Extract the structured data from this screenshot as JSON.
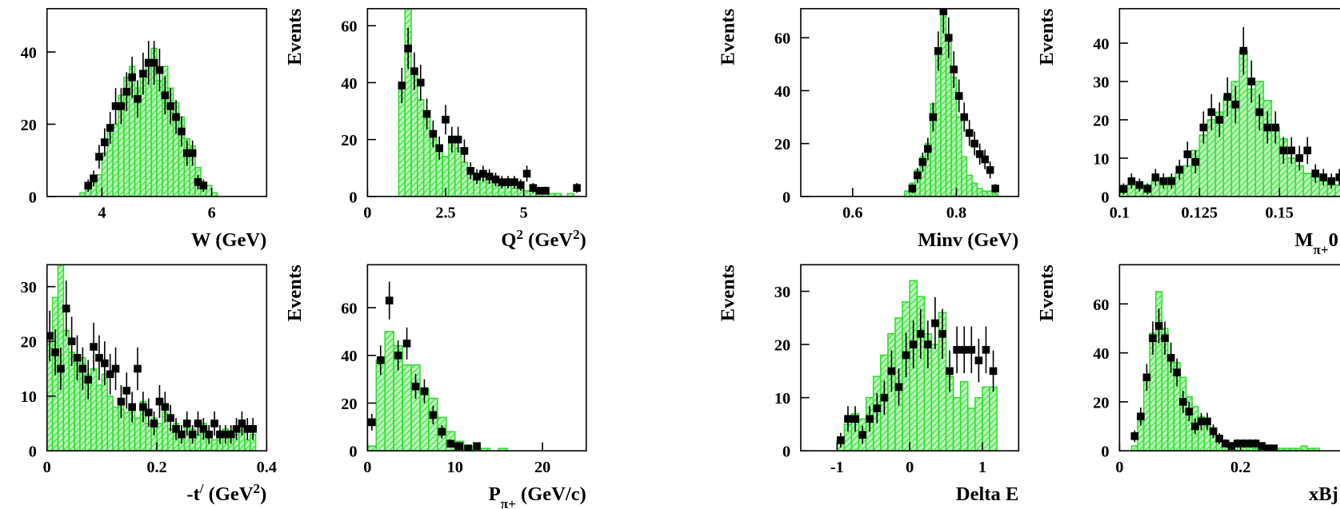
{
  "chart_data": [
    {
      "type": "histogram",
      "xlabel": [
        {
          "text": "W (GeV)"
        }
      ],
      "xlim": [
        3,
        7
      ],
      "xticks": [
        4,
        6
      ],
      "ylim": [
        0,
        52
      ],
      "yticks": [
        0,
        20,
        40
      ],
      "color": "#33dd33",
      "bins": [
        3.6,
        3.7,
        3.8,
        3.9,
        4.0,
        4.1,
        4.2,
        4.3,
        4.4,
        4.5,
        4.6,
        4.7,
        4.8,
        4.9,
        5.0,
        5.1,
        5.2,
        5.3,
        5.4,
        5.5,
        5.6,
        5.7,
        5.8,
        5.9,
        6.0,
        6.1
      ],
      "counts": [
        1,
        2,
        4,
        6,
        12,
        18,
        20,
        28,
        33,
        36,
        30,
        34,
        38,
        41,
        32,
        36,
        30,
        26,
        22,
        16,
        14,
        8,
        4,
        3,
        1
      ],
      "points": {
        "x": [
          3.75,
          3.85,
          3.95,
          4.05,
          4.15,
          4.25,
          4.35,
          4.45,
          4.55,
          4.65,
          4.75,
          4.85,
          4.95,
          5.05,
          5.15,
          5.25,
          5.35,
          5.45,
          5.55,
          5.65,
          5.75,
          5.85
        ],
        "values": [
          3,
          5,
          11,
          15,
          19,
          25,
          25,
          29,
          33,
          27,
          34,
          37,
          37,
          35,
          28,
          25,
          22,
          18,
          12,
          12,
          4,
          3
        ],
        "errors": [
          1.7,
          2.2,
          3.3,
          3.9,
          4.4,
          5,
          5,
          5.4,
          5.7,
          5.2,
          5.8,
          6.1,
          6.1,
          5.9,
          5.3,
          5,
          4.7,
          4.2,
          3.5,
          3.5,
          2,
          1.7
        ]
      }
    },
    {
      "type": "histogram",
      "ylabel": "Events",
      "xlabel": [
        {
          "text": "Q"
        },
        {
          "sup": "2"
        },
        {
          "text": " (GeV"
        },
        {
          "sup": "2"
        },
        {
          "text": ")"
        }
      ],
      "xlim": [
        0,
        7
      ],
      "xticks": [
        0,
        2.5,
        5
      ],
      "ylim": [
        0,
        66
      ],
      "yticks": [
        0,
        20,
        40,
        60
      ],
      "color": "#33dd33",
      "bins": [
        1.0,
        1.2,
        1.4,
        1.6,
        1.8,
        2.0,
        2.2,
        2.4,
        2.6,
        2.8,
        3.0,
        3.2,
        3.4,
        3.6,
        3.8,
        4.0,
        4.2,
        4.4,
        4.6,
        4.8,
        5.0,
        5.2,
        5.4,
        5.6,
        5.8,
        6.0,
        6.2,
        6.4,
        6.6,
        6.8
      ],
      "counts": [
        40,
        66,
        44,
        34,
        28,
        22,
        18,
        14,
        20,
        17,
        12,
        10,
        8,
        7,
        5,
        6,
        5,
        4,
        3,
        4,
        2,
        2,
        2,
        1,
        1,
        1,
        0,
        1,
        0
      ],
      "points": {
        "x": [
          1.1,
          1.3,
          1.5,
          1.7,
          1.9,
          2.1,
          2.3,
          2.5,
          2.7,
          2.9,
          3.1,
          3.3,
          3.5,
          3.7,
          3.9,
          4.1,
          4.3,
          4.5,
          4.7,
          4.9,
          5.1,
          5.3,
          5.5,
          5.7,
          6.7
        ],
        "values": [
          39,
          52,
          44,
          40,
          29,
          22,
          17,
          27,
          20,
          20,
          16,
          9,
          7,
          8,
          7,
          6,
          5,
          5,
          5,
          4,
          8,
          3,
          2,
          2,
          3
        ],
        "errors": [
          6.2,
          7.2,
          6.6,
          6.3,
          5.4,
          4.7,
          4.1,
          5.2,
          4.5,
          4.5,
          4,
          3,
          2.6,
          2.8,
          2.6,
          2.4,
          2.2,
          2.2,
          2.2,
          2,
          2.8,
          1.7,
          1.4,
          1.4,
          1.7
        ]
      }
    },
    {
      "type": "histogram",
      "ylabel": "Events",
      "xlabel": [
        {
          "text": "Minv (GeV)"
        }
      ],
      "xlim": [
        0.5,
        0.92
      ],
      "xticks": [
        0.6,
        0.8
      ],
      "ylim": [
        0,
        71
      ],
      "yticks": [
        0,
        20,
        40,
        60
      ],
      "color": "#33dd33",
      "bins": [
        0.7,
        0.71,
        0.72,
        0.73,
        0.74,
        0.75,
        0.76,
        0.77,
        0.78,
        0.79,
        0.8,
        0.81,
        0.82,
        0.83,
        0.84,
        0.85,
        0.86,
        0.87,
        0.88
      ],
      "counts": [
        2,
        5,
        10,
        15,
        20,
        35,
        55,
        71,
        60,
        45,
        30,
        15,
        8,
        5,
        3,
        2,
        2,
        1
      ],
      "points": {
        "x": [
          0.715,
          0.725,
          0.735,
          0.745,
          0.755,
          0.765,
          0.775,
          0.785,
          0.795,
          0.805,
          0.815,
          0.825,
          0.835,
          0.845,
          0.855,
          0.865,
          0.875
        ],
        "values": [
          3,
          8,
          13,
          18,
          30,
          55,
          70,
          60,
          48,
          38,
          30,
          24,
          20,
          16,
          14,
          10,
          3
        ],
        "errors": [
          1.7,
          2.8,
          3.6,
          4.2,
          5.5,
          7.4,
          8.4,
          7.7,
          6.9,
          6.2,
          5.5,
          4.9,
          4.5,
          4,
          3.7,
          3.2,
          1.7
        ]
      }
    },
    {
      "type": "histogram",
      "ylabel": "Events",
      "xlabel": [
        {
          "text": "M"
        },
        {
          "sub": "π+"
        },
        {
          "text": "0"
        }
      ],
      "xlim": [
        0.1,
        0.17
      ],
      "xticks": [
        0.1,
        0.125,
        0.15
      ],
      "ylim": [
        0,
        49
      ],
      "yticks": [
        0,
        10,
        20,
        30,
        40
      ],
      "color": "#33dd33",
      "bins": [
        0.1,
        0.1025,
        0.105,
        0.1075,
        0.11,
        0.1125,
        0.115,
        0.1175,
        0.12,
        0.1225,
        0.125,
        0.1275,
        0.13,
        0.1325,
        0.135,
        0.1375,
        0.14,
        0.1425,
        0.145,
        0.1475,
        0.15,
        0.1525,
        0.155,
        0.1575,
        0.16,
        0.1625,
        0.165,
        0.1675,
        0.17
      ],
      "counts": [
        1,
        3,
        2,
        3,
        4,
        3,
        5,
        6,
        8,
        12,
        16,
        20,
        22,
        26,
        30,
        38,
        28,
        30,
        25,
        18,
        15,
        10,
        8,
        6,
        5,
        4,
        3,
        3
      ],
      "points": {
        "x": [
          0.10125,
          0.10375,
          0.10625,
          0.10875,
          0.11125,
          0.11375,
          0.11625,
          0.11875,
          0.12125,
          0.12375,
          0.12625,
          0.12875,
          0.13125,
          0.13375,
          0.13625,
          0.13875,
          0.14125,
          0.14375,
          0.14625,
          0.14875,
          0.15125,
          0.15375,
          0.15625,
          0.15875,
          0.16125,
          0.16375,
          0.16625,
          0.16875
        ],
        "values": [
          2,
          4,
          3,
          2,
          5,
          4,
          4,
          7,
          11,
          9,
          18,
          22,
          20,
          26,
          24,
          38,
          30,
          22,
          18,
          18,
          12,
          12,
          10,
          12,
          6,
          5,
          4,
          5
        ],
        "errors": [
          1.4,
          2,
          1.7,
          1.4,
          2.2,
          2,
          2,
          2.6,
          3.3,
          3,
          4.2,
          4.7,
          4.5,
          5.1,
          4.9,
          6.2,
          5.5,
          4.7,
          4.2,
          4.2,
          3.5,
          3.5,
          3.2,
          3.5,
          2.4,
          2.2,
          2,
          2.2
        ]
      }
    },
    {
      "type": "histogram",
      "xlabel": [
        {
          "text": "-t"
        },
        {
          "sup": "/"
        },
        {
          "text": " (GeV"
        },
        {
          "sup": "2"
        },
        {
          "text": ")"
        }
      ],
      "xlim": [
        0,
        0.4
      ],
      "xticks": [
        0,
        0.2,
        0.4
      ],
      "ylim": [
        0,
        34
      ],
      "yticks": [
        0,
        10,
        20,
        30
      ],
      "color": "#33dd33",
      "bins": [
        0,
        0.01,
        0.02,
        0.03,
        0.04,
        0.05,
        0.06,
        0.07,
        0.08,
        0.09,
        0.1,
        0.11,
        0.12,
        0.13,
        0.14,
        0.15,
        0.16,
        0.17,
        0.18,
        0.19,
        0.2,
        0.21,
        0.22,
        0.23,
        0.24,
        0.25,
        0.26,
        0.27,
        0.28,
        0.29,
        0.3,
        0.31,
        0.32,
        0.33,
        0.34,
        0.35,
        0.36,
        0.37,
        0.38
      ],
      "counts": [
        20,
        28,
        34,
        22,
        18,
        16,
        17,
        14,
        15,
        12,
        14,
        10,
        8,
        9,
        7,
        8,
        6,
        9,
        5,
        6,
        5,
        7,
        4,
        5,
        3,
        5,
        4,
        3,
        5,
        3,
        2,
        3,
        4,
        2,
        3,
        5,
        2,
        3
      ],
      "points": {
        "x": [
          0.005,
          0.015,
          0.025,
          0.035,
          0.045,
          0.055,
          0.065,
          0.075,
          0.085,
          0.095,
          0.105,
          0.115,
          0.125,
          0.135,
          0.145,
          0.155,
          0.165,
          0.175,
          0.185,
          0.195,
          0.205,
          0.215,
          0.225,
          0.235,
          0.245,
          0.255,
          0.265,
          0.275,
          0.285,
          0.295,
          0.305,
          0.315,
          0.325,
          0.335,
          0.345,
          0.355,
          0.365,
          0.375
        ],
        "values": [
          21,
          18,
          15,
          26,
          20,
          17,
          15,
          13,
          19,
          17,
          16,
          14,
          15,
          9,
          11,
          8,
          15,
          8,
          7,
          5,
          9,
          8,
          6,
          4,
          3,
          5,
          3,
          5,
          4,
          3,
          5,
          3,
          3,
          3,
          4,
          5,
          4,
          4
        ],
        "errors": [
          4.6,
          4.2,
          3.9,
          5.1,
          4.5,
          4.1,
          3.9,
          3.6,
          4.4,
          4.1,
          4,
          3.7,
          3.9,
          3,
          3.3,
          2.8,
          3.9,
          2.8,
          2.6,
          2.2,
          3,
          2.8,
          2.4,
          2,
          1.7,
          2.2,
          1.7,
          2.2,
          2,
          1.7,
          2.2,
          1.7,
          1.7,
          1.7,
          2,
          2.2,
          2,
          2
        ]
      }
    },
    {
      "type": "histogram",
      "ylabel": "Events",
      "xlabel": [
        {
          "text": "P"
        },
        {
          "sub": "π+"
        },
        {
          "text": " (GeV/c)"
        }
      ],
      "xlim": [
        0,
        25
      ],
      "xticks": [
        0,
        10,
        20
      ],
      "ylim": [
        0,
        78
      ],
      "yticks": [
        0,
        20,
        40,
        60
      ],
      "color": "#33dd33",
      "bins": [
        0,
        1,
        2,
        3,
        4,
        5,
        6,
        7,
        8,
        9,
        10,
        11,
        12,
        13,
        14,
        15,
        16
      ],
      "counts": [
        2,
        38,
        50,
        44,
        36,
        36,
        26,
        22,
        14,
        8,
        4,
        2,
        1,
        1,
        0,
        1
      ],
      "points": {
        "x": [
          0.5,
          1.5,
          2.5,
          3.5,
          4.5,
          5.5,
          6.5,
          7.5,
          8.5,
          9.5,
          10.5,
          11.5,
          12.5
        ],
        "values": [
          12,
          38,
          63,
          40,
          45,
          27,
          25,
          15,
          8,
          3,
          2,
          1,
          2
        ],
        "errors": [
          3.5,
          6.2,
          7.9,
          6.3,
          6.7,
          5.2,
          5,
          3.9,
          2.8,
          1.7,
          1.4,
          1,
          1.4
        ]
      }
    },
    {
      "type": "histogram",
      "ylabel": "Events",
      "xlabel": [
        {
          "text": "Delta E"
        }
      ],
      "xlim": [
        -1.5,
        1.5
      ],
      "xticks": [
        -1,
        0,
        1
      ],
      "ylim": [
        0,
        35
      ],
      "yticks": [
        0,
        10,
        20,
        30
      ],
      "color": "#33dd33",
      "bins": [
        -1.0,
        -0.9,
        -0.8,
        -0.7,
        -0.6,
        -0.5,
        -0.4,
        -0.3,
        -0.2,
        -0.1,
        0.0,
        0.1,
        0.2,
        0.3,
        0.4,
        0.5,
        0.6,
        0.7,
        0.8,
        0.9,
        1.0,
        1.1,
        1.2
      ],
      "counts": [
        2,
        5,
        7,
        6,
        10,
        14,
        18,
        22,
        25,
        28,
        32,
        29,
        22,
        20,
        26,
        14,
        10,
        13,
        8,
        10,
        12,
        12
      ],
      "points": {
        "x": [
          -0.95,
          -0.85,
          -0.75,
          -0.65,
          -0.55,
          -0.45,
          -0.35,
          -0.25,
          -0.15,
          -0.05,
          0.05,
          0.15,
          0.25,
          0.35,
          0.45,
          0.55,
          0.65,
          0.75,
          0.85,
          0.95,
          1.05,
          1.15
        ],
        "values": [
          2,
          6,
          6,
          3,
          6,
          8,
          10,
          15,
          12,
          18,
          20,
          22,
          20,
          24,
          22,
          15,
          19,
          19,
          19,
          17,
          19,
          15
        ],
        "errors": [
          1.4,
          2.4,
          2.4,
          1.7,
          2.4,
          2.8,
          3.2,
          3.9,
          3.5,
          4.2,
          4.5,
          4.7,
          4.5,
          4.9,
          4.7,
          3.9,
          4.4,
          4.4,
          4.4,
          4.1,
          4.4,
          3.9
        ]
      }
    },
    {
      "type": "histogram",
      "ylabel": "Events",
      "xlabel": [
        {
          "text": "xBj"
        }
      ],
      "xlim": [
        0,
        0.37
      ],
      "xticks": [
        0,
        0.2
      ],
      "ylim": [
        0,
        76
      ],
      "yticks": [
        0,
        20,
        40,
        60
      ],
      "color": "#33dd33",
      "bins": [
        0.02,
        0.03,
        0.04,
        0.05,
        0.06,
        0.07,
        0.08,
        0.09,
        0.1,
        0.11,
        0.12,
        0.13,
        0.14,
        0.15,
        0.16,
        0.17,
        0.18,
        0.19,
        0.2,
        0.21,
        0.22,
        0.23,
        0.24,
        0.25,
        0.26,
        0.27,
        0.28,
        0.29,
        0.3,
        0.31,
        0.32,
        0.33,
        0.34
      ],
      "counts": [
        2,
        12,
        30,
        48,
        65,
        50,
        38,
        36,
        30,
        22,
        18,
        14,
        10,
        8,
        4,
        3,
        2,
        2,
        2,
        2,
        1,
        2,
        2,
        1,
        1,
        1,
        1,
        1,
        2,
        1,
        1,
        0
      ],
      "points": {
        "x": [
          0.025,
          0.035,
          0.045,
          0.055,
          0.065,
          0.075,
          0.085,
          0.095,
          0.105,
          0.115,
          0.125,
          0.135,
          0.145,
          0.155,
          0.165,
          0.175,
          0.185,
          0.195,
          0.205,
          0.215,
          0.225,
          0.235,
          0.245,
          0.255
        ],
        "values": [
          6,
          14,
          30,
          46,
          51,
          46,
          38,
          32,
          20,
          16,
          10,
          12,
          12,
          8,
          5,
          3,
          2,
          3,
          3,
          3,
          3,
          2,
          1,
          1
        ],
        "errors": [
          2.4,
          3.7,
          5.5,
          6.8,
          7.1,
          6.8,
          6.2,
          5.7,
          4.5,
          4,
          3.2,
          3.5,
          3.5,
          2.8,
          2.2,
          1.7,
          1.4,
          1.7,
          1.7,
          1.7,
          1.7,
          1.4,
          1,
          1
        ]
      }
    }
  ]
}
